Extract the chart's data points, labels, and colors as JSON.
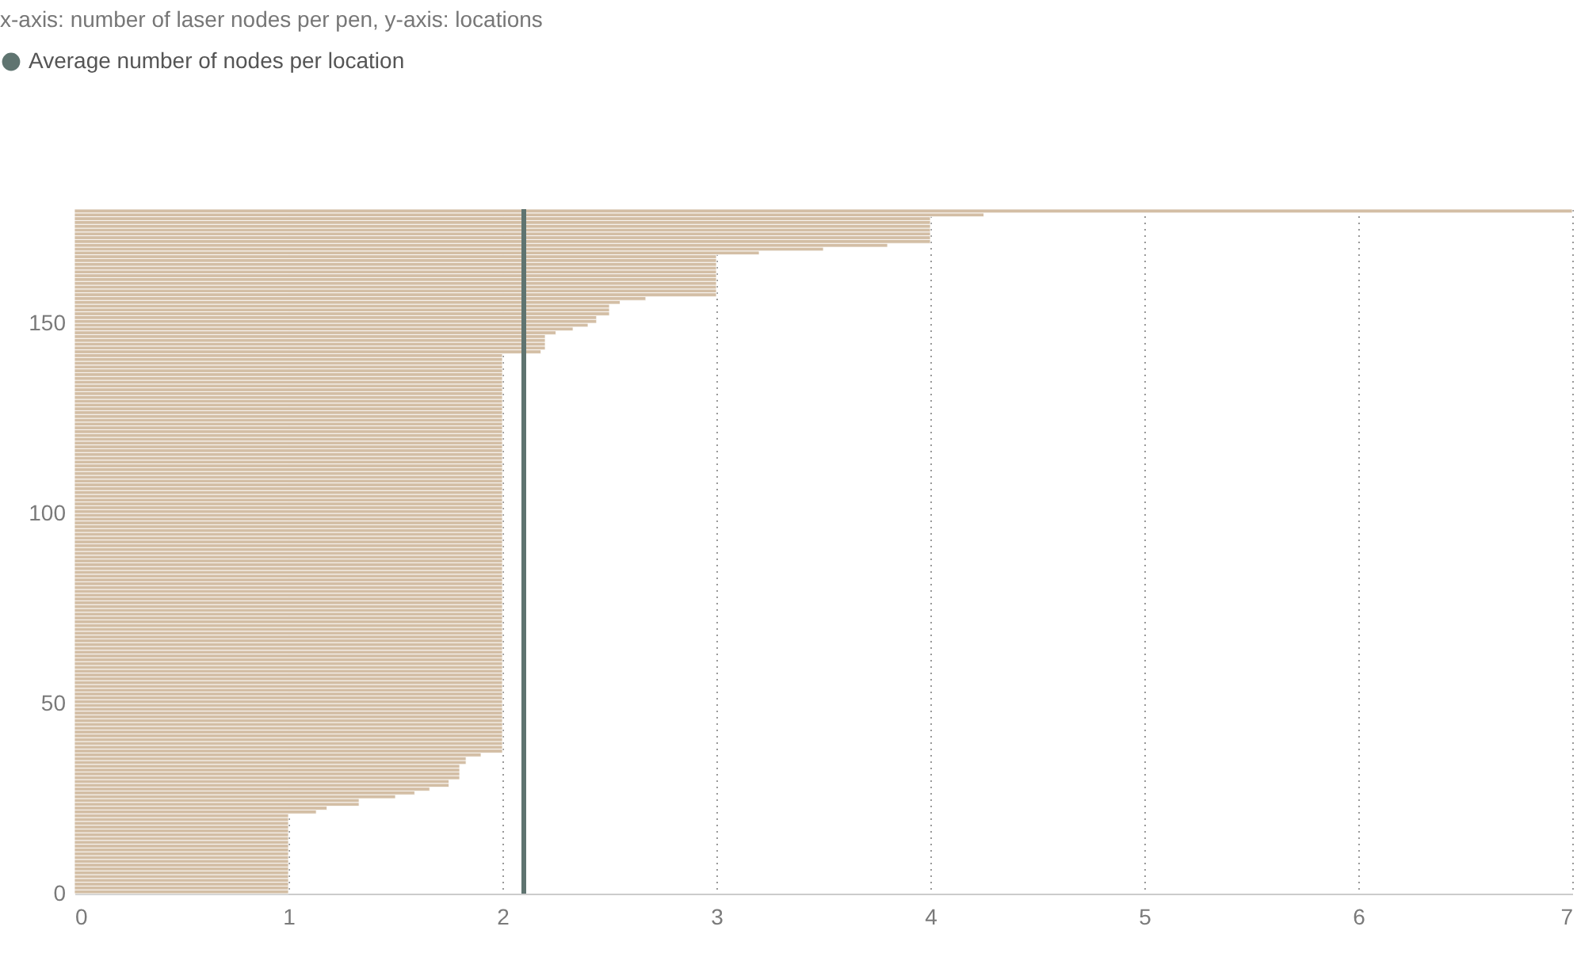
{
  "chart_data": {
    "type": "bar",
    "orientation": "horizontal",
    "title": "x-axis: number of laser nodes per pen, y-axis: locations",
    "x": [
      0,
      1,
      2,
      3,
      4,
      5,
      6,
      7,
      8,
      9,
      10,
      11,
      12,
      13,
      14,
      15,
      16,
      17,
      18,
      19,
      20,
      21,
      22,
      23,
      24,
      25,
      26,
      27,
      28,
      29,
      30,
      31,
      32,
      33,
      34,
      35,
      36,
      37,
      38,
      39,
      40,
      41,
      42,
      43,
      44,
      45,
      46,
      47,
      48,
      49,
      50,
      51,
      52,
      53,
      54,
      55,
      56,
      57,
      58,
      59,
      60,
      61,
      62,
      63,
      64,
      65,
      66,
      67,
      68,
      69,
      70,
      71,
      72,
      73,
      74,
      75,
      76,
      77,
      78,
      79,
      80,
      81,
      82,
      83,
      84,
      85,
      86,
      87,
      88,
      89,
      90,
      91,
      92,
      93,
      94,
      95,
      96,
      97,
      98,
      99,
      100,
      101,
      102,
      103,
      104,
      105,
      106,
      107,
      108,
      109,
      110,
      111,
      112,
      113,
      114,
      115,
      116,
      117,
      118,
      119,
      120,
      121,
      122,
      123,
      124,
      125,
      126,
      127,
      128,
      129,
      130,
      131,
      132,
      133,
      134,
      135,
      136,
      137,
      138,
      139,
      140,
      141,
      142,
      143,
      144,
      145,
      146,
      147,
      148,
      149,
      150,
      151,
      152,
      153,
      154,
      155,
      156,
      157,
      158,
      159,
      160,
      161,
      162,
      163,
      164,
      165,
      166,
      167,
      168,
      169,
      170,
      171,
      172,
      173,
      174,
      175,
      176,
      177,
      178,
      179
    ],
    "values": [
      1,
      1,
      1,
      1,
      1,
      1,
      1,
      1,
      1,
      1,
      1,
      1,
      1,
      1,
      1,
      1,
      1,
      1,
      1,
      1,
      1,
      1.13,
      1.18,
      1.33,
      1.33,
      1.5,
      1.59,
      1.66,
      1.75,
      1.75,
      1.8,
      1.8,
      1.8,
      1.8,
      1.83,
      1.83,
      1.9,
      2,
      2,
      2,
      2,
      2,
      2,
      2,
      2,
      2,
      2,
      2,
      2,
      2,
      2,
      2,
      2,
      2,
      2,
      2,
      2,
      2,
      2,
      2,
      2,
      2,
      2,
      2,
      2,
      2,
      2,
      2,
      2,
      2,
      2,
      2,
      2,
      2,
      2,
      2,
      2,
      2,
      2,
      2,
      2,
      2,
      2,
      2,
      2,
      2,
      2,
      2,
      2,
      2,
      2,
      2,
      2,
      2,
      2,
      2,
      2,
      2,
      2,
      2,
      2,
      2,
      2,
      2,
      2,
      2,
      2,
      2,
      2,
      2,
      2,
      2,
      2,
      2,
      2,
      2,
      2,
      2,
      2,
      2,
      2,
      2,
      2,
      2,
      2,
      2,
      2,
      2,
      2,
      2,
      2,
      2,
      2,
      2,
      2,
      2,
      2,
      2,
      2,
      2,
      2,
      2,
      2.18,
      2.2,
      2.2,
      2.2,
      2.2,
      2.25,
      2.33,
      2.4,
      2.44,
      2.44,
      2.5,
      2.5,
      2.5,
      2.55,
      2.67,
      3,
      3,
      3,
      3,
      3,
      3,
      3,
      3,
      3,
      3,
      3,
      3.2,
      3.5,
      3.8,
      4,
      4,
      4,
      4,
      4,
      4,
      4,
      4.25,
      7
    ],
    "color": "#d3bea5",
    "xlim": [
      0,
      7
    ],
    "xticks": [
      0,
      1,
      2,
      3,
      4,
      5,
      6,
      7
    ],
    "ylim": [
      0,
      180
    ],
    "yticks": [
      0,
      50,
      100,
      150
    ],
    "grid": "x",
    "legend": "top left",
    "ref_lines": [
      {
        "axis": "x",
        "value": 2.1,
        "label": "Average number of nodes per location",
        "color": "#5f7470"
      }
    ]
  }
}
